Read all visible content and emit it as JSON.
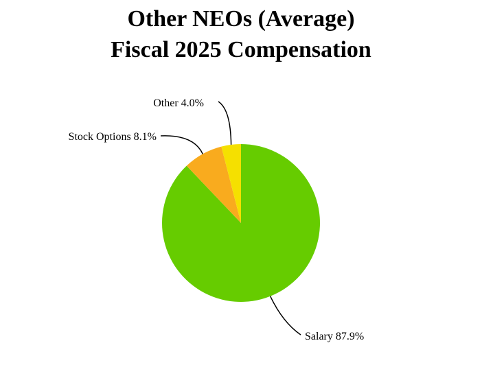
{
  "chart_data": {
    "type": "pie",
    "title": [
      "Other NEOs (Average)",
      "Fiscal 2025 Compensation"
    ],
    "categories": [
      "Salary",
      "Stock Options",
      "Other"
    ],
    "values": [
      87.9,
      8.1,
      4.0
    ],
    "value_labels": [
      "87.9%",
      "8.1%",
      "4.0%"
    ],
    "colors": [
      "#66cc00",
      "#f9ab1e",
      "#f5e000"
    ]
  }
}
